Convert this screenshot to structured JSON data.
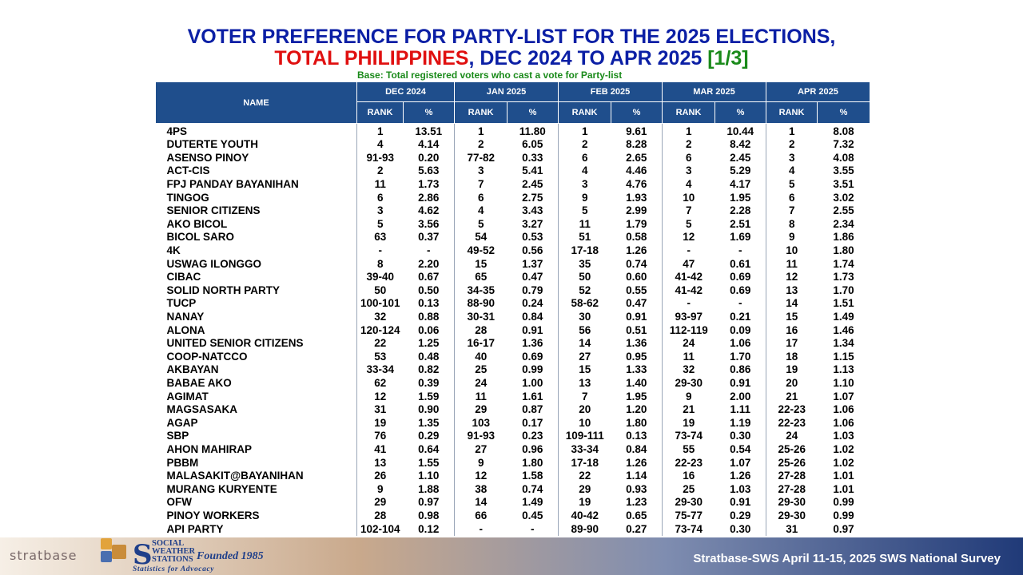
{
  "title": {
    "line1": "VOTER PREFERENCE FOR PARTY-LIST FOR THE 2025 ELECTIONS,",
    "line2_red": "TOTAL PHILIPPINES",
    "line2_mid": ", DEC 2024 TO APR 2025 ",
    "line2_green": "[1/3]"
  },
  "base_note": "Base: Total registered voters who cast a vote for Party-list",
  "table": {
    "name_header": "NAME",
    "months": [
      "DEC 2024",
      "JAN 2025",
      "FEB 2025",
      "MAR 2025",
      "APR 2025"
    ],
    "rank_label": "RANK",
    "pct_label": "%",
    "rows": [
      {
        "name": "4PS",
        "v": [
          "1",
          "13.51",
          "1",
          "11.80",
          "1",
          "9.61",
          "1",
          "10.44",
          "1",
          "8.08"
        ]
      },
      {
        "name": "DUTERTE YOUTH",
        "v": [
          "4",
          "4.14",
          "2",
          "6.05",
          "2",
          "8.28",
          "2",
          "8.42",
          "2",
          "7.32"
        ]
      },
      {
        "name": "ASENSO PINOY",
        "v": [
          "91-93",
          "0.20",
          "77-82",
          "0.33",
          "6",
          "2.65",
          "6",
          "2.45",
          "3",
          "4.08"
        ]
      },
      {
        "name": "ACT-CIS",
        "v": [
          "2",
          "5.63",
          "3",
          "5.41",
          "4",
          "4.46",
          "3",
          "5.29",
          "4",
          "3.55"
        ]
      },
      {
        "name": "FPJ PANDAY BAYANIHAN",
        "v": [
          "11",
          "1.73",
          "7",
          "2.45",
          "3",
          "4.76",
          "4",
          "4.17",
          "5",
          "3.51"
        ]
      },
      {
        "name": "TINGOG",
        "v": [
          "6",
          "2.86",
          "6",
          "2.75",
          "9",
          "1.93",
          "10",
          "1.95",
          "6",
          "3.02"
        ]
      },
      {
        "name": "SENIOR CITIZENS",
        "v": [
          "3",
          "4.62",
          "4",
          "3.43",
          "5",
          "2.99",
          "7",
          "2.28",
          "7",
          "2.55"
        ]
      },
      {
        "name": "AKO BICOL",
        "v": [
          "5",
          "3.56",
          "5",
          "3.27",
          "11",
          "1.79",
          "5",
          "2.51",
          "8",
          "2.34"
        ]
      },
      {
        "name": "BICOL SARO",
        "v": [
          "63",
          "0.37",
          "54",
          "0.53",
          "51",
          "0.58",
          "12",
          "1.69",
          "9",
          "1.86"
        ]
      },
      {
        "name": "4K",
        "v": [
          "-",
          "-",
          "49-52",
          "0.56",
          "17-18",
          "1.26",
          "-",
          "-",
          "10",
          "1.80"
        ]
      },
      {
        "name": "USWAG ILONGGO",
        "v": [
          "8",
          "2.20",
          "15",
          "1.37",
          "35",
          "0.74",
          "47",
          "0.61",
          "11",
          "1.74"
        ]
      },
      {
        "name": "CIBAC",
        "v": [
          "39-40",
          "0.67",
          "65",
          "0.47",
          "50",
          "0.60",
          "41-42",
          "0.69",
          "12",
          "1.73"
        ]
      },
      {
        "name": "SOLID NORTH PARTY",
        "v": [
          "50",
          "0.50",
          "34-35",
          "0.79",
          "52",
          "0.55",
          "41-42",
          "0.69",
          "13",
          "1.70"
        ]
      },
      {
        "name": "TUCP",
        "v": [
          "100-101",
          "0.13",
          "88-90",
          "0.24",
          "58-62",
          "0.47",
          "-",
          "-",
          "14",
          "1.51"
        ]
      },
      {
        "name": "NANAY",
        "v": [
          "32",
          "0.88",
          "30-31",
          "0.84",
          "30",
          "0.91",
          "93-97",
          "0.21",
          "15",
          "1.49"
        ]
      },
      {
        "name": "ALONA",
        "v": [
          "120-124",
          "0.06",
          "28",
          "0.91",
          "56",
          "0.51",
          "112-119",
          "0.09",
          "16",
          "1.46"
        ]
      },
      {
        "name": "UNITED SENIOR CITIZENS",
        "v": [
          "22",
          "1.25",
          "16-17",
          "1.36",
          "14",
          "1.36",
          "24",
          "1.06",
          "17",
          "1.34"
        ]
      },
      {
        "name": "COOP-NATCCO",
        "v": [
          "53",
          "0.48",
          "40",
          "0.69",
          "27",
          "0.95",
          "11",
          "1.70",
          "18",
          "1.15"
        ]
      },
      {
        "name": "AKBAYAN",
        "v": [
          "33-34",
          "0.82",
          "25",
          "0.99",
          "15",
          "1.33",
          "32",
          "0.86",
          "19",
          "1.13"
        ]
      },
      {
        "name": "BABAE AKO",
        "v": [
          "62",
          "0.39",
          "24",
          "1.00",
          "13",
          "1.40",
          "29-30",
          "0.91",
          "20",
          "1.10"
        ]
      },
      {
        "name": "AGIMAT",
        "v": [
          "12",
          "1.59",
          "11",
          "1.61",
          "7",
          "1.95",
          "9",
          "2.00",
          "21",
          "1.07"
        ]
      },
      {
        "name": "MAGSASAKA",
        "v": [
          "31",
          "0.90",
          "29",
          "0.87",
          "20",
          "1.20",
          "21",
          "1.11",
          "22-23",
          "1.06"
        ]
      },
      {
        "name": "AGAP",
        "v": [
          "19",
          "1.35",
          "103",
          "0.17",
          "10",
          "1.80",
          "19",
          "1.19",
          "22-23",
          "1.06"
        ]
      },
      {
        "name": "SBP",
        "v": [
          "76",
          "0.29",
          "91-93",
          "0.23",
          "109-111",
          "0.13",
          "73-74",
          "0.30",
          "24",
          "1.03"
        ]
      },
      {
        "name": "AHON MAHIRAP",
        "v": [
          "41",
          "0.64",
          "27",
          "0.96",
          "33-34",
          "0.84",
          "55",
          "0.54",
          "25-26",
          "1.02"
        ]
      },
      {
        "name": "PBBM",
        "v": [
          "13",
          "1.55",
          "9",
          "1.80",
          "17-18",
          "1.26",
          "22-23",
          "1.07",
          "25-26",
          "1.02"
        ]
      },
      {
        "name": "MALASAKIT@BAYANIHAN",
        "v": [
          "26",
          "1.10",
          "12",
          "1.58",
          "22",
          "1.14",
          "16",
          "1.26",
          "27-28",
          "1.01"
        ]
      },
      {
        "name": "MURANG KURYENTE",
        "v": [
          "9",
          "1.88",
          "38",
          "0.74",
          "29",
          "0.93",
          "25",
          "1.03",
          "27-28",
          "1.01"
        ]
      },
      {
        "name": "OFW",
        "v": [
          "29",
          "0.97",
          "14",
          "1.49",
          "19",
          "1.23",
          "29-30",
          "0.91",
          "29-30",
          "0.99"
        ]
      },
      {
        "name": "PINOY WORKERS",
        "v": [
          "28",
          "0.98",
          "66",
          "0.45",
          "40-42",
          "0.65",
          "75-77",
          "0.29",
          "29-30",
          "0.99"
        ]
      },
      {
        "name": "API PARTY",
        "v": [
          "102-104",
          "0.12",
          "-",
          "-",
          "89-90",
          "0.27",
          "73-74",
          "0.30",
          "31",
          "0.97"
        ]
      }
    ]
  },
  "footer": {
    "source": "Stratbase-SWS April 11-15, 2025 SWS National Survey",
    "stratbase_logo": "stratbase",
    "sws_logo_lines": [
      "SOCIAL",
      "WEATHER",
      "STATIONS"
    ],
    "sws_founded": "Founded 1985",
    "sws_tagline": "Statistics for Advocacy"
  }
}
